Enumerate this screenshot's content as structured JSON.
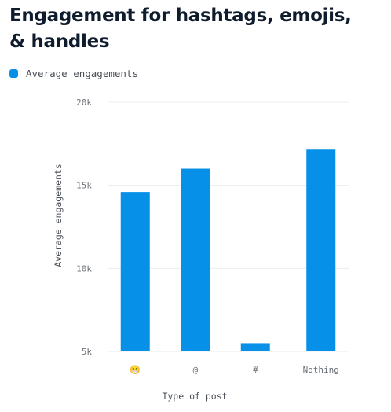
{
  "title": "Engagement for hashtags, emojis, & handles",
  "colors": {
    "bar": "#0790e8",
    "grid": "#ececec",
    "title": "#0f1c2e"
  },
  "chart_data": {
    "type": "bar",
    "title": "Engagement for hashtags, emojis, & handles",
    "xlabel": "Type of post",
    "ylabel": "Average engagements",
    "categories": [
      "😁",
      "@",
      "#",
      "Nothing"
    ],
    "series": [
      {
        "name": "Average engagements",
        "values": [
          14600,
          16000,
          5500,
          17150
        ]
      }
    ],
    "ylim": [
      5000,
      20000
    ],
    "yticks": [
      5000,
      10000,
      15000,
      20000
    ],
    "ytick_labels": [
      "5k",
      "10k",
      "15k",
      "20k"
    ],
    "grid": true,
    "legend": "top-left"
  }
}
